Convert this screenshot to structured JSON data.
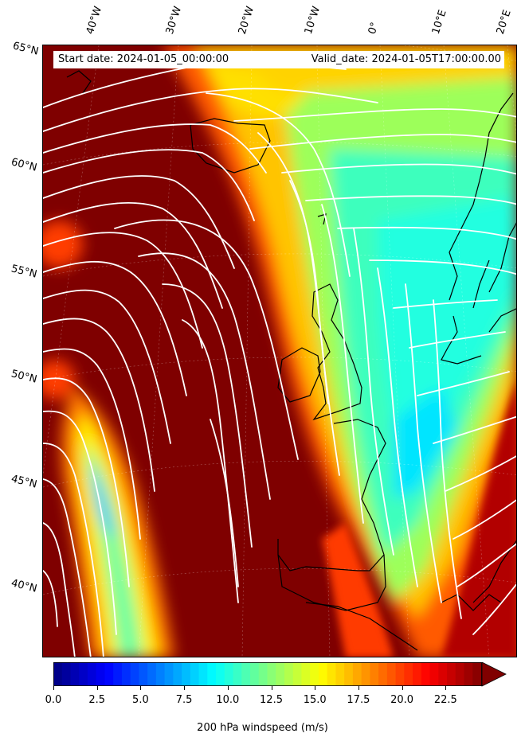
{
  "map": {
    "projection": "lambert-conformal",
    "field": "200 hPa windspeed",
    "streamlines_color": "#ffffff",
    "coastline_color": "#000000"
  },
  "info": {
    "start_date": "Start date: 2024-01-05_00:00:00",
    "valid_date": "Valid_date: 2024-01-05T17:00:00.00"
  },
  "lon_labels": [
    "40°W",
    "30°W",
    "20°W",
    "10°W",
    "0°",
    "10°E",
    "20°E"
  ],
  "lat_labels": [
    "65°N",
    "60°N",
    "55°N",
    "50°N",
    "45°N",
    "40°N"
  ],
  "colorbar": {
    "label": "200 hPa windspeed (m/s)",
    "ticks": [
      "0.0",
      "2.5",
      "5.0",
      "7.5",
      "10.0",
      "12.5",
      "15.0",
      "17.5",
      "20.0",
      "22.5"
    ],
    "vmin": 0,
    "vmax": 25,
    "extend": "max",
    "colormap": "jet"
  }
}
